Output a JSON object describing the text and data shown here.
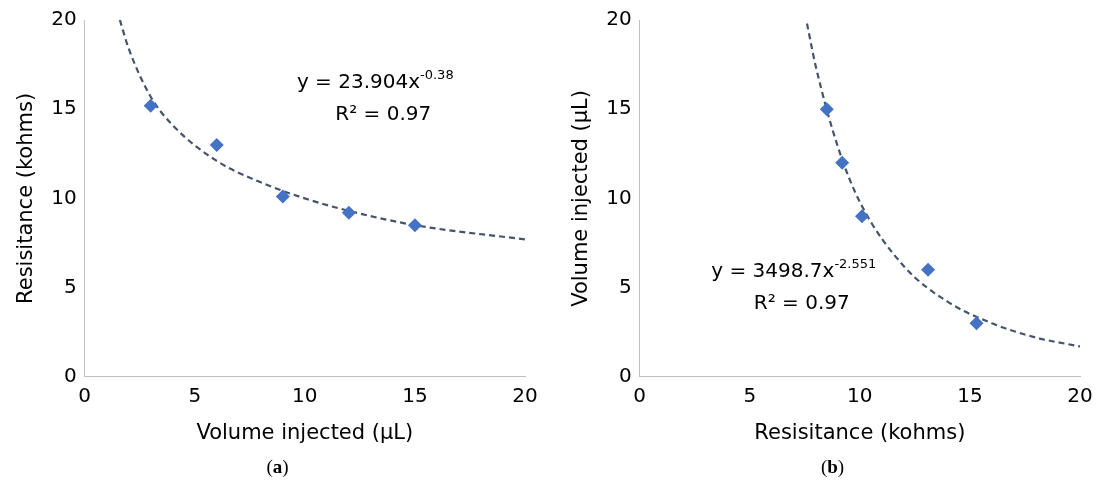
{
  "chart_data": [
    {
      "type": "scatter",
      "xlabel": "Volume injected (µL)",
      "ylabel": "Resisitance (kohms)",
      "xlim": [
        0,
        20
      ],
      "xticks": [
        0,
        5,
        10,
        15,
        20
      ],
      "ylim": [
        0,
        20
      ],
      "yticks": [
        0,
        5,
        10,
        15,
        20
      ],
      "grid": false,
      "legend": false,
      "marker": "diamond",
      "annotations": [
        "y = 23.904x$^{-0.38}$",
        "R² = 0.97",
        "(a)"
      ],
      "series": [
        {
          "type": "scatter",
          "color": "#4472c4",
          "x": [
            3,
            6,
            9,
            12,
            15
          ],
          "values": [
            15.2,
            13.0,
            10.1,
            9.2,
            8.5
          ]
        },
        {
          "type": "line",
          "color": "#44546a",
          "marker": "none",
          "line_style": "dashed",
          "x": [
            1.6,
            2,
            3,
            4,
            6,
            8,
            10,
            12,
            15,
            20
          ],
          "values": [
            20.0,
            18.4,
            15.7,
            14.1,
            12.1,
            10.9,
            10.0,
            9.3,
            8.5,
            7.7
          ]
        }
      ]
    },
    {
      "type": "scatter",
      "xlabel": "Resisitance (kohms)",
      "ylabel": "Volume injected (µL)",
      "xlim": [
        0,
        20
      ],
      "xticks": [
        0,
        5,
        10,
        15,
        20
      ],
      "ylim": [
        0,
        20
      ],
      "yticks": [
        0,
        5,
        10,
        15,
        20
      ],
      "grid": false,
      "legend": false,
      "marker": "diamond",
      "annotations": [
        "y = 3498.7x$^{-2.551}$",
        "R² = 0.97",
        "(b)"
      ],
      "series": [
        {
          "type": "scatter",
          "color": "#4472c4",
          "x": [
            8.5,
            9.2,
            10.1,
            13.1,
            15.3
          ],
          "values": [
            15,
            12,
            9,
            6,
            3
          ]
        },
        {
          "type": "line",
          "color": "#44546a",
          "marker": "none",
          "line_style": "dashed",
          "x": [
            7.6,
            8,
            9,
            10,
            12,
            14,
            16,
            18,
            20
          ],
          "values": [
            19.8,
            17.4,
            12.9,
            9.8,
            6.2,
            4.2,
            3.0,
            2.2,
            1.7
          ]
        }
      ]
    }
  ]
}
